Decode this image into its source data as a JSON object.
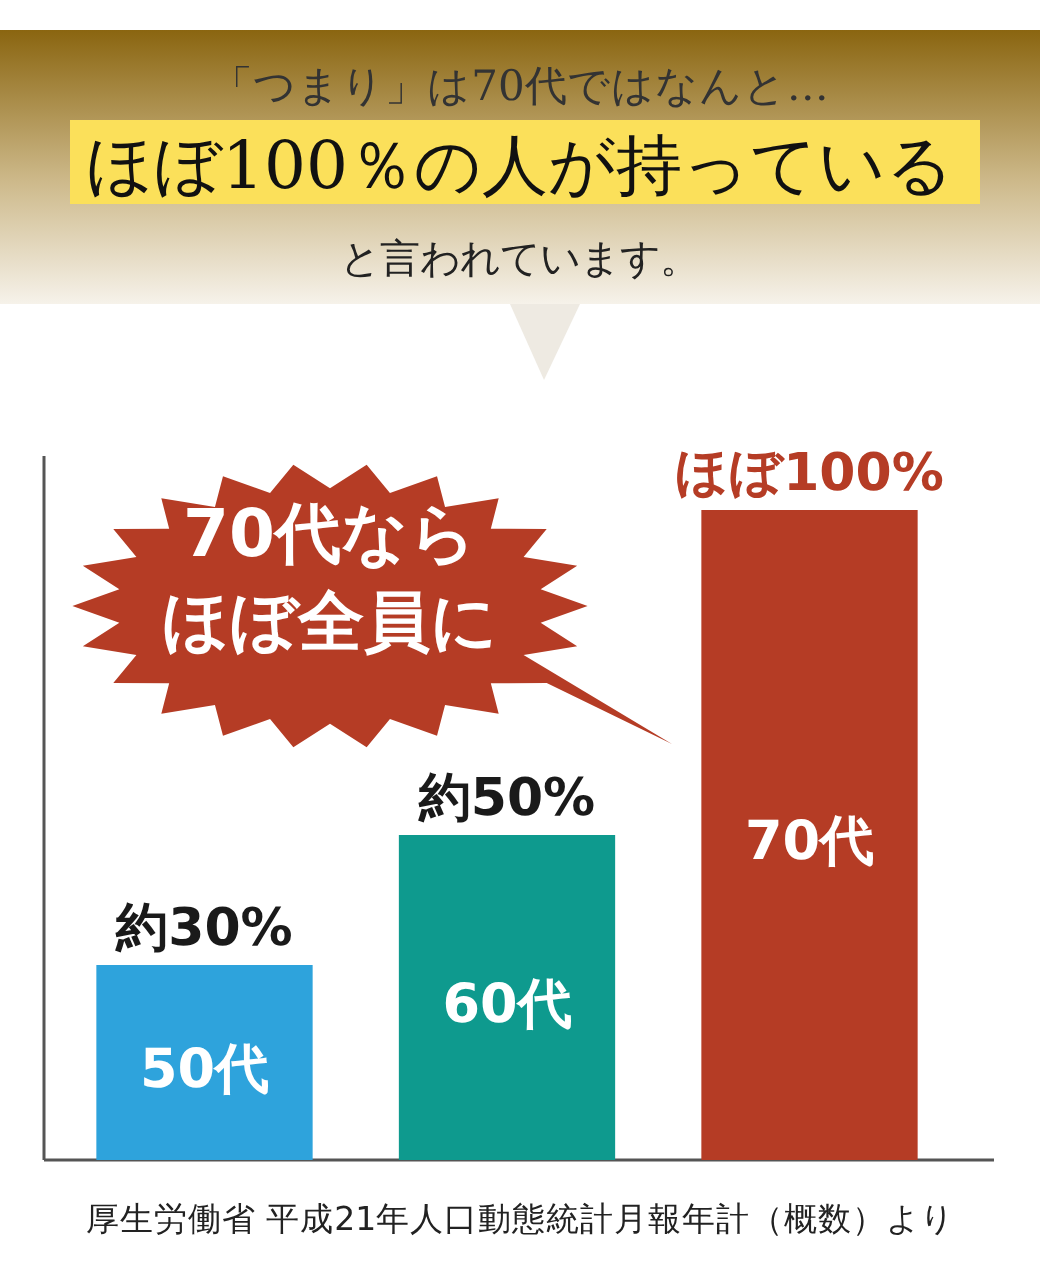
{
  "chart_data": {
    "type": "bar",
    "title": "「つまり」は70代ではなんと…",
    "subtitle": "ほぼ100％の人が持っている",
    "categories": [
      "50代",
      "60代",
      "70代"
    ],
    "values": [
      30,
      50,
      100
    ],
    "colors": [
      "#2ea3dc",
      "#0e9a8e",
      "#b53c25"
    ],
    "value_labels": [
      "約30%",
      "約50%",
      "ほぼ100%"
    ],
    "annotations": [
      "と言われています。",
      "70代なら",
      "ほぼ全員に",
      "厚生労働省 平成21年人口動態統計月報年計（概数）より"
    ]
  }
}
